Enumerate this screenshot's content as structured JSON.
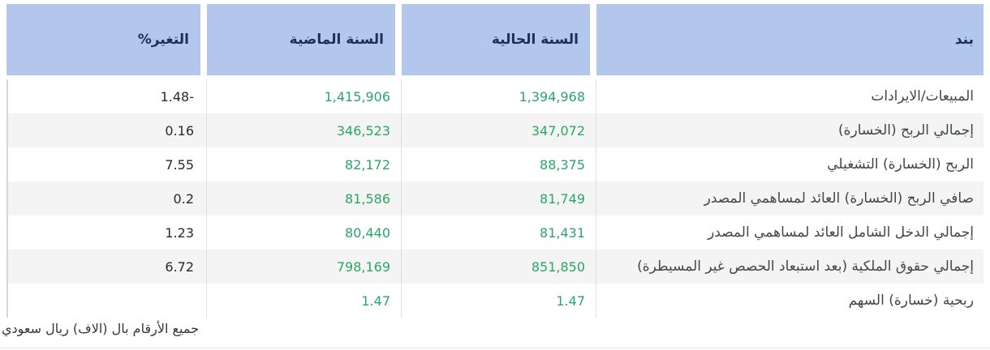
{
  "table": {
    "columns": {
      "item": "بند",
      "current_year": "السنة الحالية",
      "previous_year": "السنة الماضية",
      "change_pct": "التغير%"
    },
    "rows": [
      {
        "item": "المبيعات/الايرادات",
        "current_year": "1,394,968",
        "previous_year": "1,415,906",
        "change_pct": "1.48-"
      },
      {
        "item": "إجمالي الربح (الخسارة)",
        "current_year": "347,072",
        "previous_year": "346,523",
        "change_pct": "0.16"
      },
      {
        "item": "الربح (الخسارة) التشغيلي",
        "current_year": "88,375",
        "previous_year": "82,172",
        "change_pct": "7.55"
      },
      {
        "item": "صافي الربح (الخسارة) العائد لمساهمي المصدر",
        "current_year": "81,749",
        "previous_year": "81,586",
        "change_pct": "0.2"
      },
      {
        "item": "إجمالي الدخل الشامل العائد لمساهمي المصدر",
        "current_year": "81,431",
        "previous_year": "80,440",
        "change_pct": "1.23"
      },
      {
        "item": "إجمالي حقوق الملكية (بعد استبعاد الحصص غير المسيطرة)",
        "current_year": "851,850",
        "previous_year": "798,169",
        "change_pct": "6.72"
      },
      {
        "item": "ربحية (خسارة) السهم",
        "current_year": "1.47",
        "previous_year": "1.47",
        "change_pct": ""
      }
    ],
    "footnote": "جميع الأرقام بال (الاف) ريال سعودي"
  },
  "colors": {
    "header_bg": "#b3c7ec",
    "header_text": "#1d2e5c",
    "value_green": "#29a766",
    "row_alt_bg": "#f4f4f5",
    "separator": "#dfdfdf"
  }
}
